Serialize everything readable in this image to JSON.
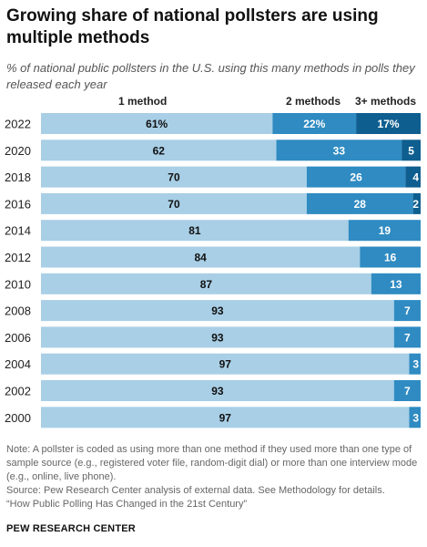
{
  "title": "Growing share of national pollsters are using multiple methods",
  "subtitle": "% of national public pollsters in the U.S. using this many methods in polls they released each year",
  "column_headers": [
    "1 method",
    "2 methods",
    "3+ methods"
  ],
  "colors": {
    "one_method": "#a8cfe6",
    "two_methods": "#2f8bc2",
    "three_plus": "#0e5e8f"
  },
  "chart_data": {
    "type": "bar",
    "orientation": "horizontal",
    "stacked": true,
    "unit": "%",
    "categories": [
      "2022",
      "2020",
      "2018",
      "2016",
      "2014",
      "2012",
      "2010",
      "2008",
      "2006",
      "2004",
      "2002",
      "2000"
    ],
    "series": [
      {
        "name": "1 method",
        "values": [
          61,
          62,
          70,
          70,
          81,
          84,
          87,
          93,
          93,
          97,
          93,
          97
        ]
      },
      {
        "name": "2 methods",
        "values": [
          22,
          33,
          26,
          28,
          19,
          16,
          13,
          7,
          7,
          3,
          7,
          3
        ]
      },
      {
        "name": "3+ methods",
        "values": [
          17,
          5,
          4,
          2,
          0,
          0,
          0,
          0,
          0,
          0,
          0,
          0
        ]
      }
    ],
    "first_row_labels": [
      "61%",
      "22%",
      "17%"
    ],
    "xlim": [
      0,
      100
    ],
    "legend": "column headers above bars"
  },
  "notes": [
    "Note: A pollster is coded as using more than one method if they used more than one type of sample source (e.g., registered voter file, random-digit dial) or more than one interview mode (e.g., online, live phone).",
    "Source: Pew Research Center analysis of external data. See Methodology for details.",
    "“How Public Polling Has Changed in the 21st Century”"
  ],
  "brand": "PEW RESEARCH CENTER"
}
